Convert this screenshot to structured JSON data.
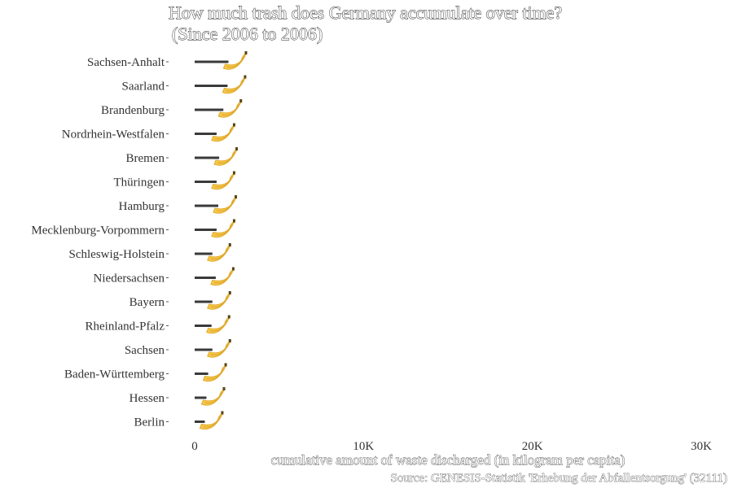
{
  "chart_data": {
    "type": "bar",
    "title": "How much trash does Germany accumulate over time?",
    "subtitle": "(Since 2006 to 2006)",
    "xlabel": "cumulative amount of waste discharged (in kilogram per capita)",
    "ylabel": "",
    "caption": "Source: GENESIS-Statistik 'Erhebung der Abfallentsorgung' (32111)",
    "xlim": [
      0,
      30000
    ],
    "xticks": [
      0,
      10000,
      20000,
      30000
    ],
    "xtick_labels": [
      "0",
      "10K",
      "20K",
      "30K"
    ],
    "marker": "banana",
    "grid": false,
    "categories": [
      "Sachsen-Anhalt",
      "Saarland",
      "Brandenburg",
      "Nordrhein-Westfalen",
      "Bremen",
      "Thüringen",
      "Hamburg",
      "Mecklenburg-Vorpommern",
      "Schleswig-Holstein",
      "Niedersachsen",
      "Bayern",
      "Rheinland-Pfalz",
      "Sachsen",
      "Baden-Württemberg",
      "Hessen",
      "Berlin"
    ],
    "values": [
      2000,
      1950,
      1700,
      1300,
      1450,
      1300,
      1400,
      1300,
      1050,
      1250,
      1050,
      1000,
      1050,
      800,
      700,
      600
    ],
    "colors": {
      "bar": "#3a3a3a",
      "banana": "#f6c94a",
      "banana_shade": "#e0a92c",
      "banana_tip": "#5a4410",
      "tick": "#555555"
    }
  }
}
